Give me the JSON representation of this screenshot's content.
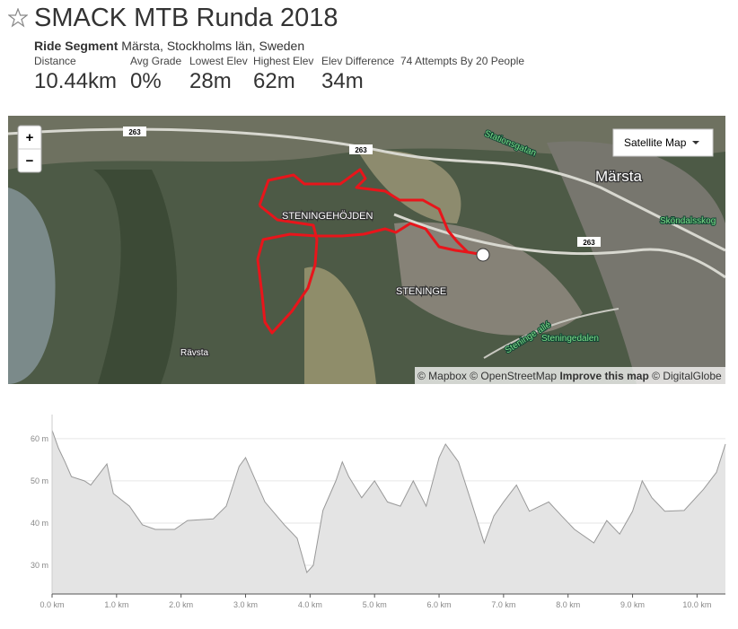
{
  "header": {
    "title": "SMACK MTB Runda 2018",
    "segment_type": "Ride Segment",
    "location": "Märsta, Stockholms län, Sweden"
  },
  "stats": [
    {
      "label": "Distance",
      "value": "10.44km"
    },
    {
      "label": "Avg Grade",
      "value": "0%"
    },
    {
      "label": "Lowest Elev",
      "value": "28m"
    },
    {
      "label": "Highest Elev",
      "value": "62m"
    },
    {
      "label": "Elev Difference",
      "value": "34m"
    }
  ],
  "attempts": "74 Attempts By 20 People",
  "map": {
    "zoom_in": "+",
    "zoom_out": "−",
    "layer_button": "Satellite Map",
    "labels": [
      "Märsta",
      "STENINGEHÖJDEN",
      "STENINGE",
      "Rävsta",
      "Steningedalen",
      "Steninge allé",
      "Stationsgatan",
      "Sköndalsskog"
    ],
    "road_numbers": [
      "263",
      "263",
      "263"
    ],
    "attribution": {
      "mapbox": "© Mapbox",
      "osm": "© OpenStreetMap",
      "improve": "Improve this map",
      "globe": "© DigitalGlobe"
    }
  },
  "chart_data": {
    "type": "area",
    "color": "#e4e4e4",
    "line_color": "#999999",
    "x": [
      0,
      0.1,
      0.2,
      0.3,
      0.5,
      0.6,
      0.7,
      0.85,
      0.95,
      1.2,
      1.4,
      1.6,
      1.9,
      2.1,
      2.5,
      2.7,
      2.9,
      3.0,
      3.1,
      3.3,
      3.6,
      3.8,
      3.95,
      4.05,
      4.2,
      4.4,
      4.5,
      4.6,
      4.8,
      5.0,
      5.2,
      5.4,
      5.6,
      5.8,
      6.0,
      6.1,
      6.3,
      6.5,
      6.7,
      6.85,
      7.0,
      7.2,
      7.4,
      7.7,
      7.9,
      8.1,
      8.4,
      8.6,
      8.8,
      9.0,
      9.15,
      9.3,
      9.5,
      9.8,
      10.1,
      10.3,
      10.44
    ],
    "values": [
      62,
      57.7,
      54.5,
      51,
      50,
      49,
      51,
      54,
      47,
      44,
      39.6,
      38.5,
      38.5,
      40.6,
      41,
      44,
      53.4,
      55.5,
      52,
      45,
      39.6,
      36.4,
      28.3,
      30,
      43,
      50,
      54.5,
      51,
      46,
      50,
      45,
      44,
      50,
      44,
      55.5,
      58.7,
      54.5,
      45,
      35.3,
      41.7,
      45,
      49,
      42.8,
      45,
      41.7,
      38.5,
      35.3,
      40.6,
      37.4,
      42.8,
      50,
      46,
      42.8,
      43,
      48,
      52,
      58.7
    ],
    "xlim": [
      0,
      10.44
    ],
    "ylim": [
      23.2,
      65.7
    ],
    "xticks": [
      {
        "value": 0,
        "label": "0.0 km"
      },
      {
        "value": 1,
        "label": "1.0 km"
      },
      {
        "value": 2,
        "label": "2.0 km"
      },
      {
        "value": 3,
        "label": "3.0 km"
      },
      {
        "value": 4,
        "label": "4.0 km"
      },
      {
        "value": 5,
        "label": "5.0 km"
      },
      {
        "value": 6,
        "label": "6.0 km"
      },
      {
        "value": 7,
        "label": "7.0 km"
      },
      {
        "value": 8,
        "label": "8.0 km"
      },
      {
        "value": 9,
        "label": "9.0 km"
      },
      {
        "value": 10,
        "label": "10.0 km"
      }
    ],
    "yticks": [
      {
        "value": 30,
        "label": "30 m"
      },
      {
        "value": 40,
        "label": "40 m"
      },
      {
        "value": 50,
        "label": "50 m"
      },
      {
        "value": 60,
        "label": "60 m"
      }
    ],
    "grid": true
  }
}
